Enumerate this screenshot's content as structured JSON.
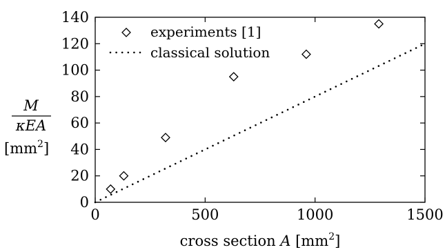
{
  "chart_data": {
    "type": "scatter",
    "xlabel": "cross section A [mm2]",
    "xlabel_parts": {
      "text": "cross section ",
      "var": "A",
      "unit": " [mm",
      "sup": "2",
      "close": "]"
    },
    "ylabel": {
      "numerator": "M",
      "denominator": "κEA",
      "unit": "[mm",
      "unit_sup": "2",
      "unit_close": "]"
    },
    "xlim": [
      0,
      1500
    ],
    "ylim": [
      0,
      140
    ],
    "x_ticks": [
      0,
      500,
      1000,
      1500
    ],
    "y_ticks": [
      0,
      20,
      40,
      60,
      80,
      100,
      120,
      140
    ],
    "grid": false,
    "legend_position": "top-left",
    "series": [
      {
        "name": "experiments [1]",
        "kind": "markers",
        "marker": "diamond",
        "x": [
          70,
          130,
          320,
          630,
          960,
          1290
        ],
        "y": [
          10,
          20,
          49,
          95,
          112,
          135
        ]
      },
      {
        "name": "classical solution",
        "kind": "line",
        "style": "dotted",
        "x": [
          0,
          1500
        ],
        "y": [
          0,
          120
        ]
      }
    ]
  }
}
